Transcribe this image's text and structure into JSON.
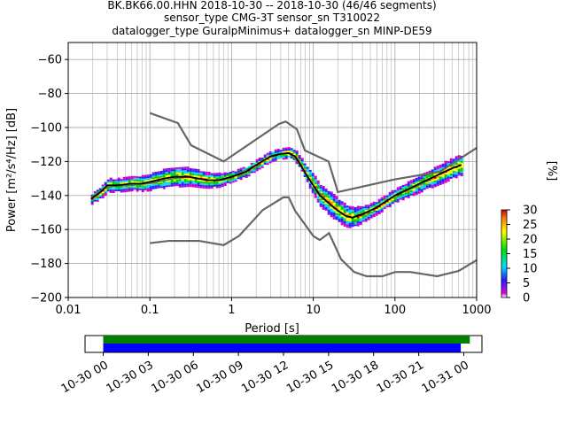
{
  "chart_data": {
    "type": "heatmap",
    "title_lines": [
      "BK.BK66.00.HHN   2018-10-30 -- 2018-10-30  (46/46 segments)",
      "sensor_type CMG-3T sensor_sn T310022",
      "datalogger_type GuralpMinimus+ datalogger_sn MINP-DE59"
    ],
    "xlabel": "Period [s]",
    "ylabel": "Power [m²/s⁴/Hz] [dB]",
    "xscale": "log",
    "xlim": [
      0.01,
      1000
    ],
    "ylim": [
      -200,
      -50
    ],
    "xticks": [
      {
        "v": 0.01,
        "label": "0.01"
      },
      {
        "v": 0.1,
        "label": "0.1"
      },
      {
        "v": 1,
        "label": "1"
      },
      {
        "v": 10,
        "label": "10"
      },
      {
        "v": 100,
        "label": "100"
      },
      {
        "v": 1000,
        "label": "1000"
      }
    ],
    "yticks": [
      {
        "v": -60,
        "label": "−60"
      },
      {
        "v": -80,
        "label": "−80"
      },
      {
        "v": -100,
        "label": "−100"
      },
      {
        "v": -120,
        "label": "−120"
      },
      {
        "v": -140,
        "label": "−140"
      },
      {
        "v": -160,
        "label": "−160"
      },
      {
        "v": -180,
        "label": "−180"
      },
      {
        "v": -200,
        "label": "−200"
      }
    ],
    "grid": true,
    "colorbar": {
      "label": "[%]",
      "min": 0,
      "max": 30,
      "ticks": [
        {
          "v": 0,
          "label": "0"
        },
        {
          "v": 5,
          "label": "5"
        },
        {
          "v": 10,
          "label": "10"
        },
        {
          "v": 15,
          "label": "15"
        },
        {
          "v": 20,
          "label": "20"
        },
        {
          "v": 25,
          "label": "25"
        },
        {
          "v": 30,
          "label": "30"
        }
      ]
    },
    "mean_curve": [
      [
        0.019,
        -142
      ],
      [
        0.025,
        -138
      ],
      [
        0.03,
        -134
      ],
      [
        0.04,
        -134
      ],
      [
        0.06,
        -133
      ],
      [
        0.08,
        -133
      ],
      [
        0.1,
        -132
      ],
      [
        0.15,
        -130
      ],
      [
        0.2,
        -129
      ],
      [
        0.3,
        -129
      ],
      [
        0.5,
        -131
      ],
      [
        0.7,
        -131
      ],
      [
        1,
        -129
      ],
      [
        1.5,
        -126
      ],
      [
        2,
        -122
      ],
      [
        3,
        -117
      ],
      [
        4,
        -115.5
      ],
      [
        5,
        -115
      ],
      [
        6,
        -117
      ],
      [
        7,
        -122
      ],
      [
        8,
        -127
      ],
      [
        10,
        -134
      ],
      [
        12,
        -140
      ],
      [
        15,
        -144
      ],
      [
        20,
        -149
      ],
      [
        25,
        -152
      ],
      [
        30,
        -153
      ],
      [
        40,
        -151
      ],
      [
        60,
        -147
      ],
      [
        100,
        -140
      ],
      [
        150,
        -136
      ],
      [
        200,
        -133
      ],
      [
        300,
        -129
      ],
      [
        500,
        -124
      ],
      [
        650,
        -122
      ]
    ],
    "spread": [
      [
        0.019,
        3
      ],
      [
        0.03,
        4
      ],
      [
        0.06,
        4
      ],
      [
        0.1,
        5
      ],
      [
        0.2,
        6
      ],
      [
        0.4,
        5
      ],
      [
        0.7,
        4
      ],
      [
        1,
        3
      ],
      [
        2,
        3
      ],
      [
        3,
        3
      ],
      [
        5,
        3
      ],
      [
        7,
        4
      ],
      [
        10,
        6
      ],
      [
        15,
        7
      ],
      [
        20,
        7
      ],
      [
        30,
        6
      ],
      [
        50,
        4
      ],
      [
        100,
        4
      ],
      [
        200,
        5
      ],
      [
        400,
        6
      ],
      [
        650,
        6
      ]
    ],
    "mode_curve": [
      [
        0.019,
        -141
      ],
      [
        0.03,
        -135
      ],
      [
        0.06,
        -134
      ],
      [
        0.1,
        -133
      ],
      [
        0.2,
        -130
      ],
      [
        0.3,
        -129
      ],
      [
        0.5,
        -131
      ],
      [
        0.8,
        -131
      ],
      [
        1,
        -129
      ],
      [
        2,
        -122
      ],
      [
        3,
        -117
      ],
      [
        5,
        -115
      ],
      [
        7,
        -122
      ],
      [
        10,
        -134
      ],
      [
        15,
        -144
      ],
      [
        25,
        -152
      ],
      [
        30,
        -153
      ],
      [
        50,
        -149
      ],
      [
        100,
        -140
      ],
      [
        200,
        -134
      ],
      [
        300,
        -129
      ],
      [
        500,
        -124
      ],
      [
        650,
        -122
      ]
    ],
    "nhnm": [
      [
        0.1,
        -91.5
      ],
      [
        0.22,
        -97.4
      ],
      [
        0.32,
        -110.5
      ],
      [
        0.8,
        -120
      ],
      [
        3.8,
        -97.9
      ],
      [
        4.6,
        -96.5
      ],
      [
        6.3,
        -101
      ],
      [
        7.9,
        -113.5
      ],
      [
        15.4,
        -120
      ],
      [
        20,
        -138
      ],
      [
        100,
        -130.5
      ],
      [
        354,
        -126
      ],
      [
        1000,
        -112
      ]
    ],
    "nlnm": [
      [
        0.1,
        -168
      ],
      [
        0.17,
        -166.7
      ],
      [
        0.4,
        -166.7
      ],
      [
        0.8,
        -169.2
      ],
      [
        1.24,
        -163.7
      ],
      [
        2.4,
        -148.6
      ],
      [
        4.3,
        -141.1
      ],
      [
        5,
        -141.1
      ],
      [
        6,
        -149
      ],
      [
        10,
        -163.8
      ],
      [
        12,
        -166.2
      ],
      [
        15.6,
        -162.1
      ],
      [
        21.9,
        -177.5
      ],
      [
        31.6,
        -185
      ],
      [
        45,
        -187.5
      ],
      [
        70,
        -187.5
      ],
      [
        101,
        -185
      ],
      [
        154,
        -185
      ],
      [
        328,
        -187.5
      ],
      [
        600,
        -184.4
      ],
      [
        1000,
        -178
      ]
    ],
    "time_axis": {
      "start_hour": 0,
      "end_hour": 27,
      "ticks": [
        {
          "h": 0,
          "label": "10-30 00"
        },
        {
          "h": 3,
          "label": "10-30 03"
        },
        {
          "h": 6,
          "label": "10-30 06"
        },
        {
          "h": 9,
          "label": "10-30 09"
        },
        {
          "h": 12,
          "label": "10-30 12"
        },
        {
          "h": 15,
          "label": "10-30 15"
        },
        {
          "h": 18,
          "label": "10-30 18"
        },
        {
          "h": 21,
          "label": "10-30 21"
        },
        {
          "h": 24,
          "label": "10-31 00"
        }
      ],
      "data_coverage": [
        {
          "from": 0,
          "to": 24.4
        }
      ],
      "psd_coverage": [
        {
          "from": 0,
          "to": 23.8
        }
      ],
      "colors": {
        "data": "#008000",
        "psd": "#0000ff"
      }
    },
    "colors": {
      "mean_curve": "#000000",
      "mode_curve": "#2e8b57",
      "noise_models": "#666666",
      "grid": "#b0b0b0"
    }
  }
}
